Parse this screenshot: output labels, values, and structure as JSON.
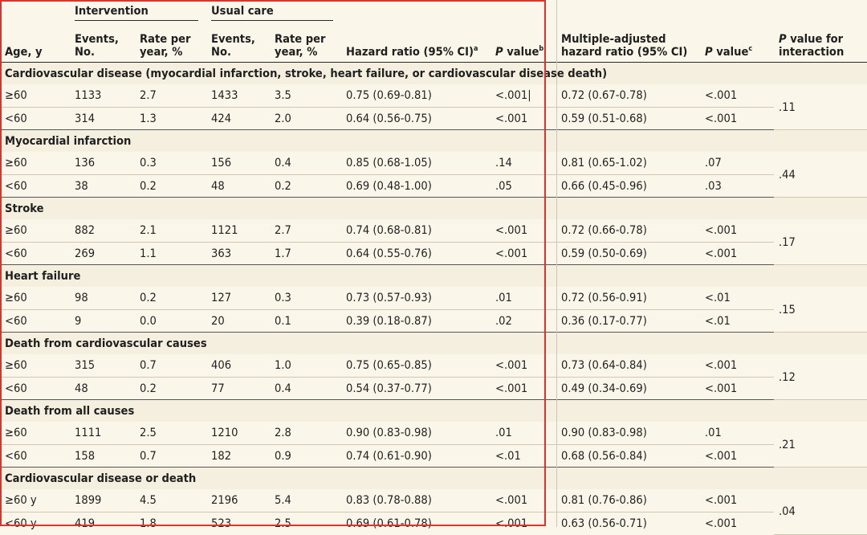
{
  "header": {
    "groups": {
      "intervention": "Intervention",
      "usual_care": "Usual care"
    },
    "columns": {
      "age": "Age, y",
      "events": "Events, No.",
      "rate": "Rate per year, %",
      "hr": "Hazard ratio (95% CI)",
      "hr_sup": "a",
      "p": "value",
      "p_italic": "P",
      "p_sup": "b",
      "madj": "Multiple-adjusted hazard ratio (95% CI)",
      "p2": "value",
      "p2_italic": "P",
      "p2_sup": "c",
      "pint_italic": "P",
      "pint": " value for interaction"
    }
  },
  "sections": [
    {
      "title": "Cardiovascular disease (myocardial infarction, stroke, heart failure, or cardiovascular disease death)",
      "p_interaction": ".11",
      "rows": [
        {
          "age": "≥60",
          "int_events": "1133",
          "int_rate": "2.7",
          "uc_events": "1433",
          "uc_rate": "3.5",
          "hr": "0.75 (0.69-0.81)",
          "p": "<.001|",
          "madj": "0.72 (0.67-0.78)",
          "p2": "<.001"
        },
        {
          "age": "<60",
          "int_events": "314",
          "int_rate": "1.3",
          "uc_events": "424",
          "uc_rate": "2.0",
          "hr": "0.64 (0.56-0.75)",
          "p": "<.001",
          "madj": "0.59 (0.51-0.68)",
          "p2": "<.001"
        }
      ]
    },
    {
      "title": "Myocardial infarction",
      "p_interaction": ".44",
      "rows": [
        {
          "age": "≥60",
          "int_events": "136",
          "int_rate": "0.3",
          "uc_events": "156",
          "uc_rate": "0.4",
          "hr": "0.85 (0.68-1.05)",
          "p": ".14",
          "madj": "0.81 (0.65-1.02)",
          "p2": ".07"
        },
        {
          "age": "<60",
          "int_events": "38",
          "int_rate": "0.2",
          "uc_events": "48",
          "uc_rate": "0.2",
          "hr": "0.69 (0.48-1.00)",
          "p": ".05",
          "madj": "0.66 (0.45-0.96)",
          "p2": ".03"
        }
      ]
    },
    {
      "title": "Stroke",
      "p_interaction": ".17",
      "rows": [
        {
          "age": "≥60",
          "int_events": "882",
          "int_rate": "2.1",
          "uc_events": "1121",
          "uc_rate": "2.7",
          "hr": "0.74 (0.68-0.81)",
          "p": "<.001",
          "madj": "0.72 (0.66-0.78)",
          "p2": "<.001"
        },
        {
          "age": "<60",
          "int_events": "269",
          "int_rate": "1.1",
          "uc_events": "363",
          "uc_rate": "1.7",
          "hr": "0.64 (0.55-0.76)",
          "p": "<.001",
          "madj": "0.59 (0.50-0.69)",
          "p2": "<.001"
        }
      ]
    },
    {
      "title": "Heart failure",
      "p_interaction": ".15",
      "rows": [
        {
          "age": "≥60",
          "int_events": "98",
          "int_rate": "0.2",
          "uc_events": "127",
          "uc_rate": "0.3",
          "hr": "0.73 (0.57-0.93)",
          "p": ".01",
          "madj": "0.72 (0.56-0.91)",
          "p2": "<.01"
        },
        {
          "age": "<60",
          "int_events": "9",
          "int_rate": "0.0",
          "uc_events": "20",
          "uc_rate": "0.1",
          "hr": "0.39 (0.18-0.87)",
          "p": ".02",
          "madj": "0.36 (0.17-0.77)",
          "p2": "<.01"
        }
      ]
    },
    {
      "title": "Death from cardiovascular causes",
      "p_interaction": ".12",
      "rows": [
        {
          "age": "≥60",
          "int_events": "315",
          "int_rate": "0.7",
          "uc_events": "406",
          "uc_rate": "1.0",
          "hr": "0.75 (0.65-0.85)",
          "p": "<.001",
          "madj": "0.73 (0.64-0.84)",
          "p2": "<.001"
        },
        {
          "age": "<60",
          "int_events": "48",
          "int_rate": "0.2",
          "uc_events": "77",
          "uc_rate": "0.4",
          "hr": "0.54 (0.37-0.77)",
          "p": "<.001",
          "madj": "0.49 (0.34-0.69)",
          "p2": "<.001"
        }
      ]
    },
    {
      "title": "Death from all causes",
      "p_interaction": ".21",
      "rows": [
        {
          "age": "≥60",
          "int_events": "1111",
          "int_rate": "2.5",
          "uc_events": "1210",
          "uc_rate": "2.8",
          "hr": "0.90 (0.83-0.98)",
          "p": ".01",
          "madj": "0.90 (0.83-0.98)",
          "p2": ".01"
        },
        {
          "age": "<60",
          "int_events": "158",
          "int_rate": "0.7",
          "uc_events": "182",
          "uc_rate": "0.9",
          "hr": "0.74 (0.61-0.90)",
          "p": "<.01",
          "madj": "0.68 (0.56-0.84)",
          "p2": "<.001"
        }
      ]
    },
    {
      "title": "Cardiovascular disease or death",
      "p_interaction": ".04",
      "rows": [
        {
          "age": "≥60 y",
          "int_events": "1899",
          "int_rate": "4.5",
          "uc_events": "2196",
          "uc_rate": "5.4",
          "hr": "0.83 (0.78-0.88)",
          "p": "<.001",
          "madj": "0.81 (0.76-0.86)",
          "p2": "<.001"
        },
        {
          "age": "<60 y",
          "int_events": "419",
          "int_rate": "1.8",
          "uc_events": "523",
          "uc_rate": "2.5",
          "hr": "0.69 (0.61-0.78)",
          "p": "<.001",
          "madj": "0.63 (0.56-0.71)",
          "p2": "<.001"
        }
      ]
    }
  ],
  "colors": {
    "background": "#fbf6ea",
    "highlight_box": "#e0322c",
    "rule": "#2a2a2a"
  }
}
